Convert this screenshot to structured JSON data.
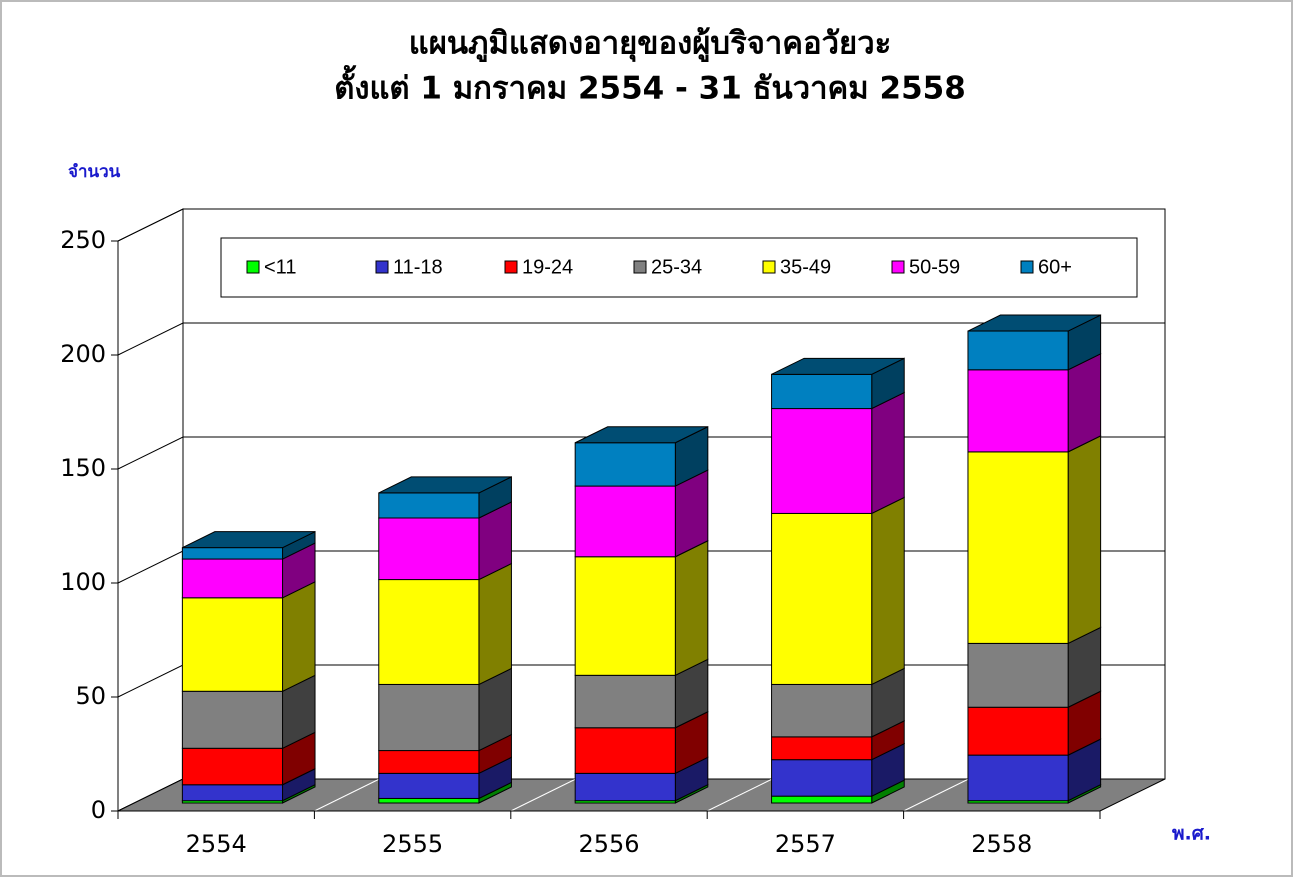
{
  "chart_data": {
    "type": "bar3d_stacked",
    "title": "แผนภูมิแสดงอายุของผู้บริจาคอวัยวะ",
    "subtitle": "ตั้งแต่ 1 มกราคม 2554 - 31 ธันวาคม 2558",
    "y_label": "จำนวน",
    "x_label": "พ.ศ.",
    "categories": [
      "2554",
      "2555",
      "2556",
      "2557",
      "2558"
    ],
    "series": [
      {
        "name": "<11",
        "color": "#00ff00",
        "values": [
          1,
          2,
          1,
          3,
          1
        ]
      },
      {
        "name": "11-18",
        "color": "#3333cc",
        "values": [
          7,
          11,
          12,
          16,
          20
        ]
      },
      {
        "name": "19-24",
        "color": "#ff0000",
        "values": [
          16,
          10,
          20,
          10,
          21
        ]
      },
      {
        "name": "25-34",
        "color": "#808080",
        "values": [
          25,
          29,
          23,
          23,
          28
        ]
      },
      {
        "name": "35-49",
        "color": "#ffff00",
        "values": [
          41,
          46,
          52,
          75,
          84
        ]
      },
      {
        "name": "50-59",
        "color": "#ff00ff",
        "values": [
          17,
          27,
          31,
          46,
          36
        ]
      },
      {
        "name": "60+",
        "color": "#0080c0",
        "values": [
          5,
          11,
          19,
          15,
          17
        ]
      }
    ],
    "ylim": [
      0,
      250
    ],
    "yticks": [
      0,
      50,
      100,
      150,
      200,
      250
    ],
    "grid": true
  }
}
